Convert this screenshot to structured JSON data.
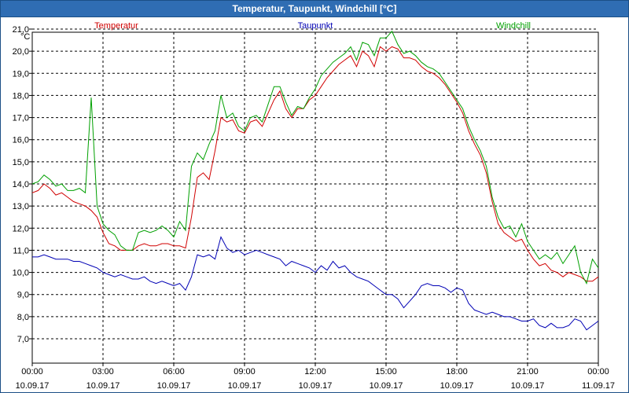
{
  "window": {
    "title": "Temperatur, Taupunkt, Windchill [°C]"
  },
  "chart_data": {
    "type": "line",
    "title": "Temperatur, Taupunkt, Windchill [°C]",
    "ylabel": "°C",
    "ylim": [
      6.5,
      21.5
    ],
    "yticks": [
      "7,0",
      "8,0",
      "9,0",
      "10,0",
      "11,0",
      "12,0",
      "13,0",
      "14,0",
      "15,0",
      "16,0",
      "17,0",
      "18,0",
      "19,0",
      "20,0",
      "21,0"
    ],
    "xlim": [
      0,
      24
    ],
    "xticks": [
      {
        "time": "00:00",
        "date": "10.09.17"
      },
      {
        "time": "03:00",
        "date": "10.09.17"
      },
      {
        "time": "06:00",
        "date": "10.09.17"
      },
      {
        "time": "09:00",
        "date": "10.09.17"
      },
      {
        "time": "12:00",
        "date": "10.09.17"
      },
      {
        "time": "15:00",
        "date": "10.09.17"
      },
      {
        "time": "18:00",
        "date": "10.09.17"
      },
      {
        "time": "21:00",
        "date": "10.09.17"
      },
      {
        "time": "00:00",
        "date": "11.09.17"
      }
    ],
    "grid": true,
    "legend": "top",
    "x_hours": [
      0,
      0.25,
      0.5,
      0.75,
      1,
      1.25,
      1.5,
      1.75,
      2,
      2.25,
      2.5,
      2.75,
      3,
      3.25,
      3.5,
      3.75,
      4,
      4.25,
      4.5,
      4.75,
      5,
      5.25,
      5.5,
      5.75,
      6,
      6.25,
      6.5,
      6.75,
      7,
      7.25,
      7.5,
      7.75,
      8,
      8.25,
      8.5,
      8.75,
      9,
      9.25,
      9.5,
      9.75,
      10,
      10.25,
      10.5,
      10.75,
      11,
      11.25,
      11.5,
      11.75,
      12,
      12.25,
      12.5,
      12.75,
      13,
      13.25,
      13.5,
      13.75,
      14,
      14.25,
      14.5,
      14.75,
      15,
      15.25,
      15.5,
      15.75,
      16,
      16.25,
      16.5,
      16.75,
      17,
      17.25,
      17.5,
      17.75,
      18,
      18.25,
      18.5,
      18.75,
      19,
      19.25,
      19.5,
      19.75,
      20,
      20.25,
      20.5,
      20.75,
      21,
      21.25,
      21.5,
      21.75,
      22,
      22.25,
      22.5,
      22.75,
      23,
      23.25,
      23.5,
      23.75,
      24
    ],
    "series": [
      {
        "name": "Temperatur",
        "color": "#d00000",
        "values": [
          13.6,
          13.7,
          14.0,
          13.8,
          13.5,
          13.6,
          13.4,
          13.2,
          13.1,
          13.0,
          12.8,
          12.5,
          11.8,
          11.3,
          11.2,
          11.0,
          11.0,
          11.0,
          11.2,
          11.3,
          11.2,
          11.2,
          11.3,
          11.3,
          11.2,
          11.2,
          11.1,
          12.5,
          14.3,
          14.5,
          14.2,
          15.5,
          17.0,
          16.8,
          16.9,
          16.4,
          16.3,
          16.8,
          16.9,
          16.6,
          17.2,
          17.8,
          18.2,
          17.4,
          17.0,
          17.4,
          17.4,
          17.8,
          18.0,
          18.4,
          18.8,
          19.1,
          19.4,
          19.6,
          19.8,
          19.3,
          20.0,
          19.8,
          19.3,
          20.2,
          20.0,
          20.2,
          20.1,
          19.7,
          19.7,
          19.6,
          19.3,
          19.1,
          19.0,
          18.8,
          18.5,
          18.1,
          17.7,
          17.2,
          16.4,
          15.8,
          15.3,
          14.5,
          13.2,
          12.2,
          11.8,
          11.6,
          11.4,
          11.5,
          11.0,
          10.6,
          10.3,
          10.4,
          10.1,
          10.0,
          9.8,
          10.0,
          9.9,
          9.8,
          9.6,
          9.6,
          9.8
        ]
      },
      {
        "name": "Taupunkt",
        "color": "#0000b4",
        "values": [
          10.7,
          10.7,
          10.8,
          10.7,
          10.6,
          10.6,
          10.6,
          10.5,
          10.5,
          10.4,
          10.3,
          10.2,
          10.0,
          9.9,
          9.8,
          9.9,
          9.8,
          9.7,
          9.7,
          9.8,
          9.6,
          9.5,
          9.6,
          9.5,
          9.4,
          9.5,
          9.2,
          9.8,
          10.8,
          10.7,
          10.8,
          10.6,
          11.6,
          11.1,
          10.9,
          11.0,
          10.8,
          10.9,
          11.0,
          10.9,
          10.8,
          10.7,
          10.6,
          10.3,
          10.5,
          10.4,
          10.3,
          10.2,
          10.0,
          10.3,
          10.1,
          10.5,
          10.2,
          10.3,
          10.0,
          9.8,
          9.7,
          9.6,
          9.4,
          9.2,
          9.0,
          9.0,
          8.8,
          8.4,
          8.7,
          9.0,
          9.4,
          9.5,
          9.4,
          9.4,
          9.3,
          9.1,
          9.3,
          9.2,
          8.6,
          8.3,
          8.2,
          8.1,
          8.2,
          8.1,
          8.0,
          8.0,
          7.9,
          7.8,
          7.8,
          7.9,
          7.6,
          7.5,
          7.7,
          7.5,
          7.5,
          7.6,
          7.9,
          7.8,
          7.4,
          7.6,
          7.8
        ]
      },
      {
        "name": "Windchill",
        "color": "#00a000",
        "values": [
          14.0,
          14.1,
          14.4,
          14.2,
          13.9,
          14.0,
          13.7,
          13.7,
          13.8,
          13.6,
          17.9,
          13.0,
          12.2,
          11.9,
          11.7,
          11.2,
          11.0,
          11.0,
          11.8,
          11.9,
          11.8,
          11.9,
          12.1,
          11.9,
          11.6,
          12.3,
          11.9,
          14.8,
          15.4,
          15.1,
          15.8,
          16.4,
          18.0,
          17.0,
          17.2,
          16.6,
          16.4,
          17.0,
          17.1,
          16.8,
          17.6,
          18.4,
          18.4,
          17.7,
          17.1,
          17.5,
          17.4,
          17.9,
          18.3,
          18.9,
          19.2,
          19.5,
          19.7,
          19.9,
          20.2,
          19.6,
          20.4,
          20.3,
          19.8,
          20.6,
          20.6,
          20.9,
          20.3,
          19.9,
          20.0,
          19.8,
          19.5,
          19.3,
          19.2,
          19.0,
          18.6,
          18.2,
          17.8,
          17.4,
          16.6,
          16.0,
          15.5,
          14.8,
          13.4,
          12.5,
          12.0,
          12.1,
          11.6,
          12.2,
          11.4,
          11.0,
          10.6,
          10.8,
          10.6,
          10.9,
          10.4,
          10.8,
          11.2,
          10.0,
          9.5,
          10.6,
          10.2
        ]
      }
    ]
  }
}
